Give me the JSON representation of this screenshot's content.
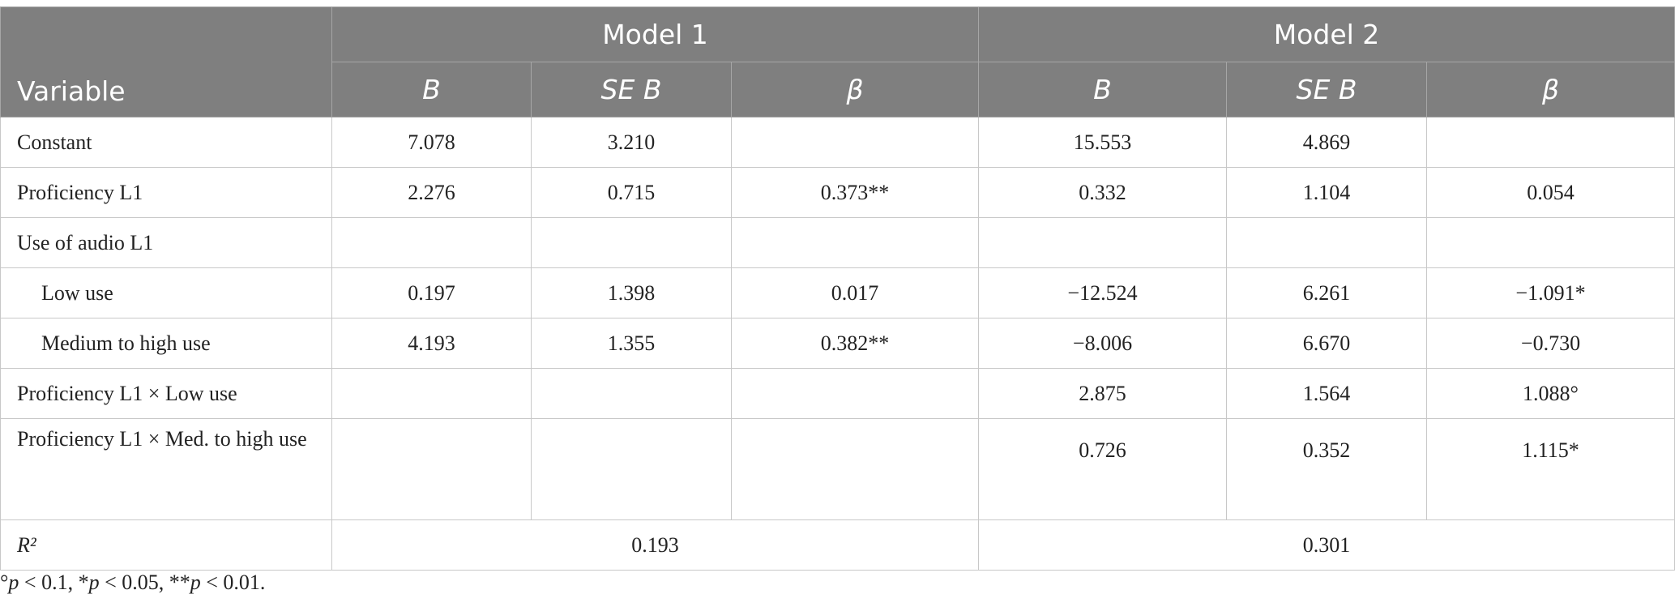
{
  "table": {
    "header": {
      "variable": "Variable",
      "groups": [
        "Model 1",
        "Model 2"
      ],
      "columns": [
        "B",
        "SE B",
        "β",
        "B",
        "SE B",
        "β"
      ]
    },
    "rows": [
      [
        "Constant",
        "7.078",
        "3.210",
        null,
        "15.553",
        "4.869",
        null
      ],
      [
        "Proficiency L1",
        "2.276",
        "0.715",
        "0.373**",
        "0.332",
        "1.104",
        "0.054"
      ],
      [
        "Use of audio L1",
        null,
        null,
        null,
        null,
        null,
        null
      ],
      [
        "Low use",
        "0.197",
        "1.398",
        "0.017",
        "−12.524",
        "6.261",
        "−1.091*"
      ],
      [
        "Medium to high use",
        "4.193",
        "1.355",
        "0.382**",
        "−8.006",
        "6.670",
        "−0.730"
      ],
      [
        "Proficiency L1 × Low use",
        null,
        null,
        null,
        "2.875",
        "1.564",
        "1.088°"
      ],
      [
        "Proficiency L1 × Med. to high use",
        null,
        null,
        null,
        "0.726",
        "0.352",
        "1.115*"
      ],
      [
        "R²",
        "0.193",
        "0.301"
      ]
    ],
    "footnote": [
      "°",
      "p",
      " < 0.1, *",
      "p",
      " < 0.05, **",
      "p",
      " < 0.01."
    ]
  }
}
